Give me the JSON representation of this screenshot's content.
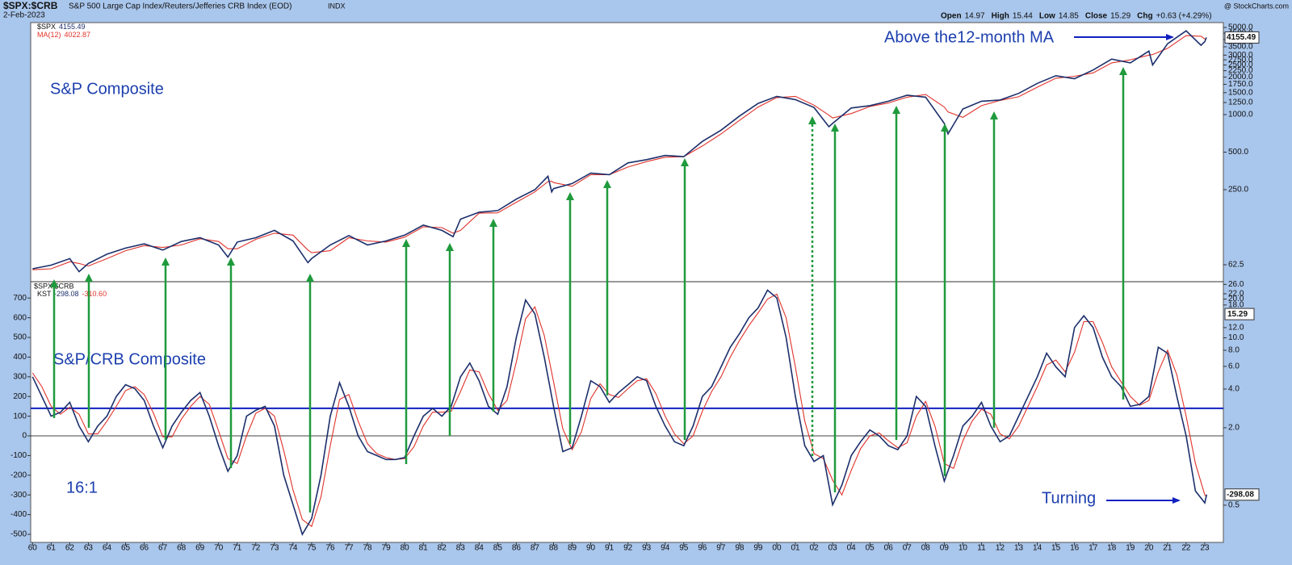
{
  "header": {
    "symbol": "$SPX:$CRB",
    "description": "S&P 500 Large Cap Index/Reuters/Jefferies CRB Index (EOD)",
    "exchange": "INDX",
    "date": "2-Feb-2023",
    "source": "@ StockCharts.com",
    "quote": [
      {
        "label": "Open",
        "value": "14.97"
      },
      {
        "label": "High",
        "value": "15.44"
      },
      {
        "label": "Low",
        "value": "14.85"
      },
      {
        "label": "Close",
        "value": "15.29"
      },
      {
        "label": "Chg",
        "value": "+0.63 (+4.29%)"
      }
    ]
  },
  "chart_data": [
    {
      "type": "line",
      "label": "S&P Composite",
      "annotation": "Above the12-month MA",
      "log_scale": true,
      "xlim": [
        1959.9,
        2024.0
      ],
      "ylim": [
        45.7,
        5470
      ],
      "yticks": [
        62.5,
        {
          "value": 250,
          "label": "250.0"
        },
        {
          "value": 500,
          "label": "500.0"
        },
        {
          "value": 1000,
          "label": "1000.0"
        },
        {
          "value": 1250,
          "label": "1250.0"
        },
        {
          "value": 1500,
          "label": "1500.0"
        },
        {
          "value": 1750,
          "label": "1750.0"
        },
        {
          "value": 2000,
          "label": "2000.0"
        },
        {
          "value": 2250,
          "label": "2250.0"
        },
        {
          "value": 2500,
          "label": "2500.0"
        },
        {
          "value": 2750,
          "label": "2750.0"
        },
        {
          "value": 3000,
          "label": "3000.0"
        },
        {
          "value": 3500,
          "label": "3500.0"
        },
        {
          "value": 4000,
          "label": "4000.0"
        },
        {
          "value": 4500,
          "label": "4500.0"
        },
        {
          "value": 5000,
          "label": "5000.0"
        }
      ],
      "x": [
        1960,
        1961,
        1962,
        1962.5,
        1963,
        1964,
        1965,
        1966,
        1967,
        1968,
        1969,
        1970,
        1970.5,
        1971,
        1972,
        1973,
        1974,
        1974.8,
        1975,
        1976,
        1977,
        1978,
        1979,
        1980,
        1981,
        1982,
        1982.6,
        1983,
        1984,
        1985,
        1986,
        1987,
        1987.7,
        1987.9,
        1988,
        1989,
        1990,
        1991,
        1992,
        1993,
        1994,
        1995,
        1996,
        1997,
        1998,
        1999,
        2000,
        2001,
        2002,
        2002.8,
        2003,
        2004,
        2005,
        2006,
        2007,
        2008,
        2009,
        2009.2,
        2010,
        2011,
        2012,
        2013,
        2014,
        2015,
        2016,
        2017,
        2018,
        2019,
        2020,
        2020.2,
        2021,
        2022,
        2022.8,
        2023,
        2023.09
      ],
      "series": [
        {
          "name": "$SPX",
          "color": "#1c2f6b",
          "values": [
            58,
            62,
            70,
            55,
            64,
            76,
            85,
            92,
            82,
            96,
            103,
            90,
            72,
            95,
            103,
            118,
            97,
            65,
            70,
            90,
            107,
            90,
            97,
            108,
            130,
            118,
            105,
            145,
            165,
            170,
            210,
            250,
            320,
            240,
            255,
            280,
            340,
            330,
            410,
            435,
            470,
            460,
            610,
            750,
            975,
            1230,
            1400,
            1320,
            1140,
            800,
            850,
            1130,
            1180,
            1280,
            1430,
            1380,
            850,
            700,
            1110,
            1280,
            1310,
            1480,
            1780,
            2050,
            1940,
            2280,
            2790,
            2600,
            3230,
            2500,
            3700,
            4700,
            3600,
            3850,
            4155.49
          ]
        },
        {
          "name": "MA(12)",
          "color": "#e0332b",
          "values": [
            57,
            58,
            66,
            64,
            61,
            70,
            81,
            89,
            86,
            90,
            101,
            96,
            84,
            84,
            100,
            112,
            108,
            82,
            78,
            81,
            103,
            97,
            95,
            104,
            126,
            124,
            112,
            118,
            162,
            163,
            198,
            240,
            290,
            292,
            285,
            266,
            330,
            330,
            380,
            420,
            455,
            460,
            560,
            700,
            900,
            1150,
            1370,
            1400,
            1190,
            990,
            940,
            1020,
            1160,
            1240,
            1380,
            1450,
            1150,
            1050,
            950,
            1180,
            1300,
            1390,
            1660,
            1960,
            2030,
            2160,
            2600,
            2750,
            3000,
            3030,
            3400,
            4300,
            4250,
            4050,
            4022.87
          ]
        }
      ]
    },
    {
      "type": "line",
      "panel_label": "$SPX:$CRB",
      "label": "S&P/CRB Composite",
      "ratio_label": "16:1",
      "annotation": "Turning",
      "xlim": [
        1959.9,
        2024.0
      ],
      "ylim": [
        -541,
        783
      ],
      "reference_line": 140,
      "yticks": [
        -500,
        -400,
        -300,
        -200,
        -100,
        0,
        100,
        200,
        300,
        400,
        500,
        600,
        700
      ],
      "y2_log": true,
      "y2lim": [
        0.257,
        27.3
      ],
      "y2ticks": [
        0.5,
        {
          "value": 2,
          "label": "2.0"
        },
        {
          "value": 4,
          "label": "4.0"
        },
        {
          "value": 6,
          "label": "6.0"
        },
        {
          "value": 8,
          "label": "8.0"
        },
        {
          "value": 10,
          "label": "10.0"
        },
        {
          "value": 12,
          "label": "12.0"
        },
        {
          "value": 18,
          "label": "18.0"
        },
        {
          "value": 20,
          "label": "20.0"
        },
        {
          "value": 22,
          "label": "22.0"
        },
        {
          "value": 26,
          "label": "26.0"
        }
      ],
      "last_ratio": 15.29,
      "xticks": [
        {
          "value": 1960,
          "label": "60"
        },
        {
          "value": 1961,
          "label": "61"
        },
        {
          "value": 1962,
          "label": "62"
        },
        {
          "value": 1963,
          "label": "63"
        },
        {
          "value": 1964,
          "label": "64"
        },
        {
          "value": 1965,
          "label": "65"
        },
        {
          "value": 1966,
          "label": "66"
        },
        {
          "value": 1967,
          "label": "67"
        },
        {
          "value": 1968,
          "label": "68"
        },
        {
          "value": 1969,
          "label": "69"
        },
        {
          "value": 1970,
          "label": "70"
        },
        {
          "value": 1971,
          "label": "71"
        },
        {
          "value": 1972,
          "label": "72"
        },
        {
          "value": 1973,
          "label": "73"
        },
        {
          "value": 1974,
          "label": "74"
        },
        {
          "value": 1975,
          "label": "75"
        },
        {
          "value": 1976,
          "label": "76"
        },
        {
          "value": 1977,
          "label": "77"
        },
        {
          "value": 1978,
          "label": "78"
        },
        {
          "value": 1979,
          "label": "79"
        },
        {
          "value": 1980,
          "label": "80"
        },
        {
          "value": 1981,
          "label": "81"
        },
        {
          "value": 1982,
          "label": "82"
        },
        {
          "value": 1983,
          "label": "83"
        },
        {
          "value": 1984,
          "label": "84"
        },
        {
          "value": 1985,
          "label": "85"
        },
        {
          "value": 1986,
          "label": "86"
        },
        {
          "value": 1987,
          "label": "87"
        },
        {
          "value": 1988,
          "label": "88"
        },
        {
          "value": 1989,
          "label": "89"
        },
        {
          "value": 1990,
          "label": "90"
        },
        {
          "value": 1991,
          "label": "91"
        },
        {
          "value": 1992,
          "label": "92"
        },
        {
          "value": 1993,
          "label": "93"
        },
        {
          "value": 1994,
          "label": "94"
        },
        {
          "value": 1995,
          "label": "95"
        },
        {
          "value": 1996,
          "label": "96"
        },
        {
          "value": 1997,
          "label": "97"
        },
        {
          "value": 1998,
          "label": "98"
        },
        {
          "value": 1999,
          "label": "99"
        },
        {
          "value": 2000,
          "label": "00"
        },
        {
          "value": 2001,
          "label": "01"
        },
        {
          "value": 2002,
          "label": "02"
        },
        {
          "value": 2003,
          "label": "03"
        },
        {
          "value": 2004,
          "label": "04"
        },
        {
          "value": 2005,
          "label": "05"
        },
        {
          "value": 2006,
          "label": "06"
        },
        {
          "value": 2007,
          "label": "07"
        },
        {
          "value": 2008,
          "label": "08"
        },
        {
          "value": 2009,
          "label": "09"
        },
        {
          "value": 2010,
          "label": "10"
        },
        {
          "value": 2011,
          "label": "11"
        },
        {
          "value": 2012,
          "label": "12"
        },
        {
          "value": 2013,
          "label": "13"
        },
        {
          "value": 2014,
          "label": "14"
        },
        {
          "value": 2015,
          "label": "15"
        },
        {
          "value": 2016,
          "label": "16"
        },
        {
          "value": 2017,
          "label": "17"
        },
        {
          "value": 2018,
          "label": "18"
        },
        {
          "value": 2019,
          "label": "19"
        },
        {
          "value": 2020,
          "label": "20"
        },
        {
          "value": 2021,
          "label": "21"
        },
        {
          "value": 2022,
          "label": "22"
        },
        {
          "value": 2023,
          "label": "23"
        }
      ],
      "x": [
        1960,
        1960.5,
        1961,
        1961.5,
        1962,
        1962.5,
        1963,
        1963.5,
        1964,
        1964.5,
        1965,
        1965.5,
        1966,
        1966.5,
        1967,
        1967.5,
        1968,
        1968.5,
        1969,
        1969.5,
        1970,
        1970.5,
        1971,
        1971.5,
        1972,
        1972.5,
        1973,
        1973.5,
        1974,
        1974.5,
        1975,
        1975.5,
        1976,
        1976.5,
        1977,
        1977.5,
        1978,
        1978.5,
        1979,
        1979.5,
        1980,
        1980.5,
        1981,
        1981.5,
        1982,
        1982.5,
        1983,
        1983.5,
        1984,
        1984.5,
        1985,
        1985.5,
        1986,
        1986.5,
        1987,
        1987.5,
        1988,
        1988.5,
        1989,
        1989.5,
        1990,
        1990.5,
        1991,
        1991.5,
        1992,
        1992.5,
        1993,
        1993.5,
        1994,
        1994.5,
        1995,
        1995.5,
        1996,
        1996.5,
        1997,
        1997.5,
        1998,
        1998.5,
        1999,
        1999.5,
        2000,
        2000.5,
        2001,
        2001.5,
        2002,
        2002.5,
        2003,
        2003.5,
        2004,
        2004.5,
        2005,
        2005.5,
        2006,
        2006.5,
        2007,
        2007.5,
        2008,
        2008.5,
        2009,
        2009.5,
        2010,
        2010.5,
        2011,
        2011.5,
        2012,
        2012.5,
        2013,
        2013.5,
        2014,
        2014.5,
        2015,
        2015.5,
        2016,
        2016.5,
        2017,
        2017.5,
        2018,
        2018.5,
        2019,
        2019.5,
        2020,
        2020.5,
        2021,
        2021.5,
        2022,
        2022.5,
        2023,
        2023.1
      ],
      "series": [
        {
          "name": "KST",
          "color": "#1c2f6b",
          "values": [
            300,
            200,
            100,
            120,
            170,
            50,
            -30,
            50,
            100,
            200,
            260,
            240,
            180,
            50,
            -60,
            50,
            120,
            180,
            220,
            100,
            -50,
            -180,
            -100,
            100,
            130,
            150,
            50,
            -200,
            -350,
            -500,
            -420,
            -200,
            100,
            270,
            150,
            0,
            -80,
            -100,
            -120,
            -120,
            -110,
            0,
            100,
            140,
            100,
            150,
            300,
            370,
            280,
            150,
            110,
            250,
            500,
            690,
            620,
            400,
            150,
            -80,
            -60,
            100,
            280,
            250,
            170,
            220,
            260,
            300,
            280,
            150,
            50,
            -30,
            -50,
            50,
            200,
            250,
            350,
            450,
            520,
            600,
            650,
            740,
            700,
            500,
            200,
            -50,
            -130,
            -100,
            -350,
            -250,
            -100,
            -30,
            30,
            0,
            -50,
            -70,
            0,
            200,
            150,
            -50,
            -230,
            -100,
            50,
            100,
            170,
            50,
            -30,
            0,
            100,
            200,
            300,
            420,
            350,
            300,
            550,
            610,
            550,
            400,
            300,
            250,
            150,
            160,
            200,
            450,
            420,
            200,
            0,
            -280,
            -340,
            -298.08
          ]
        },
        {
          "color": "#e0332b",
          "last_label": "-310.60",
          "values": [
            320,
            250,
            150,
            110,
            145,
            110,
            10,
            10,
            75,
            150,
            230,
            250,
            210,
            115,
            -5,
            -5,
            85,
            150,
            200,
            160,
            25,
            -115,
            -140,
            0,
            115,
            140,
            100,
            -75,
            -275,
            -425,
            -460,
            -310,
            -50,
            185,
            210,
            75,
            -40,
            -90,
            -110,
            -120,
            -115,
            -55,
            50,
            120,
            120,
            125,
            225,
            335,
            325,
            215,
            130,
            180,
            375,
            595,
            655,
            510,
            275,
            35,
            -70,
            20,
            190,
            265,
            210,
            195,
            240,
            280,
            290,
            215,
            100,
            10,
            -40,
            0,
            125,
            225,
            300,
            400,
            485,
            560,
            625,
            695,
            720,
            600,
            350,
            75,
            -90,
            -115,
            -225,
            -300,
            -175,
            -65,
            0,
            15,
            -25,
            -60,
            -35,
            100,
            175,
            50,
            -140,
            -165,
            -25,
            75,
            135,
            110,
            10,
            -15,
            50,
            150,
            250,
            360,
            385,
            325,
            425,
            580,
            580,
            475,
            350,
            275,
            200,
            155,
            180,
            325,
            435,
            310,
            100,
            -140,
            -300,
            -310.6
          ]
        }
      ]
    }
  ]
}
